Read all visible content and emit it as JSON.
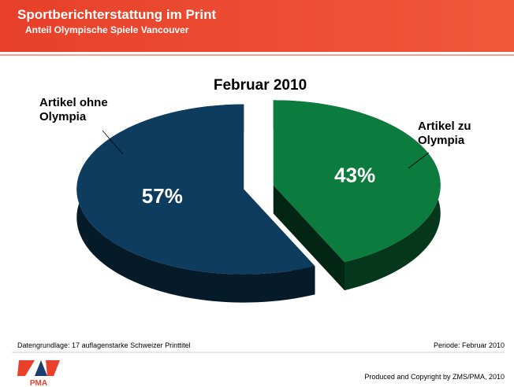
{
  "header": {
    "title": "Sportberichterstattung im Print",
    "subtitle": "Anteil Olympische Spiele Vancouver"
  },
  "chart_data": {
    "type": "pie",
    "title": "Februar 2010",
    "categories": [
      "Artikel ohne Olympia",
      "Artikel zu Olympia"
    ],
    "values": [
      57,
      43
    ],
    "value_labels": [
      "57%",
      "43%"
    ],
    "colors": [
      "#0e3c5e",
      "#0b7b3e"
    ]
  },
  "footer": {
    "source": "Datengrundlage: 17 auflagenstarke Schweizer Printtitel",
    "period": "Periode: Februar 2010",
    "copyright": "Produced and Copyright by ZMS/PMA, 2010"
  },
  "logo": {
    "text": "PMA"
  }
}
